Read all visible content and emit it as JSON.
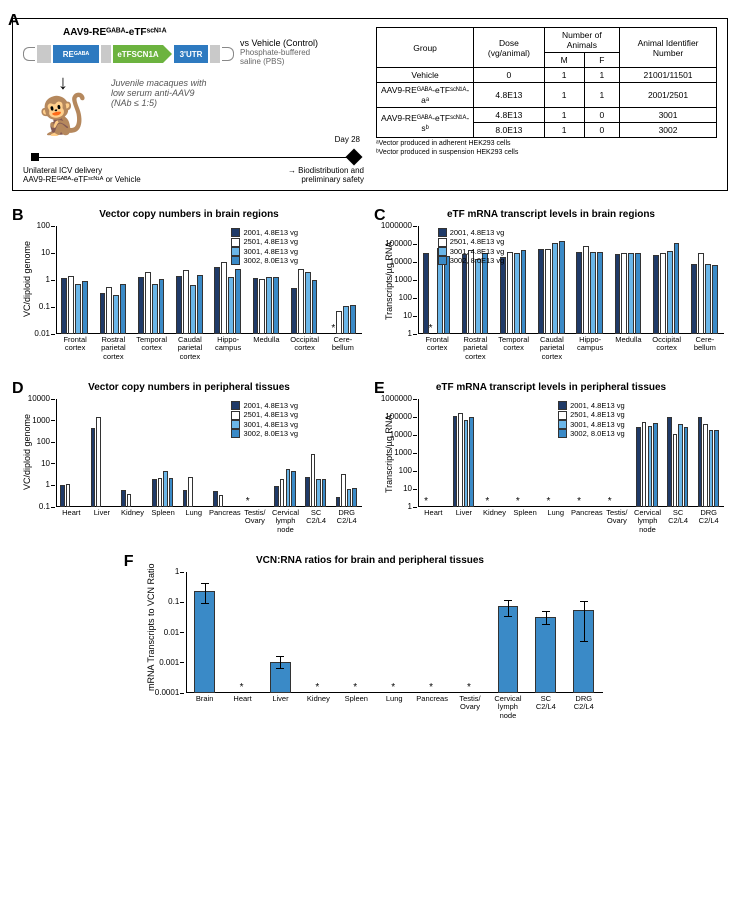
{
  "panelLabels": {
    "A": "A",
    "B": "B",
    "C": "C",
    "D": "D",
    "E": "E",
    "F": "F"
  },
  "colors": {
    "axis": "#000000",
    "bars": [
      "#1f3a68",
      "#ffffff",
      "#6bb6e8",
      "#3a8ac7"
    ],
    "barF": "#3a8ac7",
    "barFerr": "#000000"
  },
  "legend": {
    "items": [
      {
        "label": "2001, 4.8E13 vg",
        "color": "#1f3a68"
      },
      {
        "label": "2501, 4.8E13 vg",
        "color": "#ffffff"
      },
      {
        "label": "3001, 4.8E13 vg",
        "color": "#6bb6e8"
      },
      {
        "label": "3002, 8.0E13 vg",
        "color": "#3a8ac7"
      }
    ]
  },
  "A": {
    "constructTitle": "AAV9-REᴳᴬᴮᴬ-eTFˢᶜᴺ¹ᴬ",
    "segs": {
      "re": "REᴳᴬᴮᴬ",
      "etf": "eTFSCN1A",
      "utr": "3'UTR"
    },
    "vs": {
      "line1": "vs Vehicle (Control)",
      "line2": "Phosphate-buffered",
      "line3": "saline (PBS)"
    },
    "juv": {
      "l1": "Juvenile macaques with",
      "l2": "low serum anti-AAV9",
      "l3": "(NAb ≤ 1:5)"
    },
    "day28": "Day 28",
    "tl": {
      "left1": "Unilateral ICV delivery",
      "left2": "AAV9-REᴳᴬᴮᴬ-eTFˢᶜᴺ¹ᴬ or Vehicle",
      "right1": "→ Biodistribution and",
      "right2": "preliminary safety"
    },
    "table": {
      "headers": {
        "grp": "Group",
        "dose": "Dose (vg/animal)",
        "num": "Number of Animals",
        "m": "M",
        "f": "F",
        "id": "Animal Identifier Number"
      },
      "rows": [
        {
          "grp": "Vehicle",
          "dose": "0",
          "m": "1",
          "f": "1",
          "id": "21001/11501",
          "rowspan": 1
        },
        {
          "grp": "AAV9-REᴳᴬᴮᴬ-eTFˢᶜᴺ¹ᴬ-aᵃ",
          "dose": "4.8E13",
          "m": "1",
          "f": "1",
          "id": "2001/2501"
        },
        {
          "grp": "AAV9-REᴳᴬᴮᴬ-eTFˢᶜᴺ¹ᴬ-sᵇ",
          "dose": "4.8E13",
          "m": "1",
          "f": "0",
          "id": "3001",
          "extra": {
            "dose": "8.0E13",
            "m": "1",
            "f": "0",
            "id": "3002"
          }
        }
      ],
      "footnotes": [
        "ᵃVector produced in adherent HEK293 cells",
        "ᵇVector produced in suspension HEK293 cells"
      ]
    }
  },
  "B": {
    "title": "Vector copy numbers in brain regions",
    "ylabel": "VC/diploid genome",
    "yscale": {
      "type": "log",
      "min": 0.01,
      "max": 100,
      "ticks": [
        0.01,
        0.1,
        1,
        10,
        100
      ],
      "tickLabels": [
        "0.01",
        "0.1",
        "1",
        "10",
        "100"
      ]
    },
    "cats": [
      "Frontal cortex",
      "Rostral parietal cortex",
      "Temporal cortex",
      "Caudal parietal cortex",
      "Hippo-campus",
      "Medulla",
      "Occipital cortex",
      "Cere-bellum"
    ],
    "data": [
      [
        1.2,
        1.4,
        0.7,
        0.9
      ],
      [
        0.32,
        0.55,
        0.28,
        0.7
      ],
      [
        1.3,
        1.9,
        0.7,
        1.1
      ],
      [
        1.4,
        2.3,
        0.65,
        1.6
      ],
      [
        3.0,
        4.8,
        1.3,
        2.6
      ],
      [
        1.2,
        1.1,
        1.3,
        1.3
      ],
      [
        0.5,
        2.6,
        2.0,
        1.0
      ],
      [
        null,
        0.07,
        0.11,
        0.12
      ]
    ],
    "asterisks": [
      {
        "cat": 7,
        "series": 0
      }
    ]
  },
  "C": {
    "title": "eTF mRNA transcript levels in brain regions",
    "ylabel": "Transcripts/µg RNA",
    "yscale": {
      "type": "log",
      "min": 1,
      "max": 1000000,
      "ticks": [
        1,
        10,
        100,
        1000,
        10000,
        100000,
        1000000
      ],
      "tickLabels": [
        "1",
        "10",
        "100",
        "1000",
        "10000",
        "100000",
        "1000000"
      ]
    },
    "cats": [
      "Frontal cortex",
      "Rostral parietal cortex",
      "Temporal cortex",
      "Caudal parietal cortex",
      "Hippo-campus",
      "Medulla",
      "Occipital cortex",
      "Cere-bellum"
    ],
    "data": [
      [
        30000,
        null,
        60000,
        22000
      ],
      [
        28000,
        45000,
        15000,
        30000
      ],
      [
        18000,
        37000,
        33000,
        46000
      ],
      [
        55000,
        55000,
        120000,
        140000
      ],
      [
        38000,
        80000,
        35000,
        38000
      ],
      [
        28000,
        30000,
        30000,
        32000
      ],
      [
        26000,
        33000,
        43000,
        120000
      ],
      [
        8200,
        32000,
        8000,
        7000
      ]
    ],
    "asterisks": [
      {
        "cat": 0,
        "series": 1
      }
    ]
  },
  "D": {
    "title": "Vector copy numbers in peripheral tissues",
    "ylabel": "VC/diploid genome",
    "yscale": {
      "type": "log",
      "min": 0.1,
      "max": 10000,
      "ticks": [
        0.1,
        1,
        10,
        100,
        1000,
        10000
      ],
      "tickLabels": [
        "0.1",
        "1",
        "10",
        "100",
        "1000",
        "10000"
      ]
    },
    "cats": [
      "Heart",
      "Liver",
      "Kidney",
      "Spleen",
      "Lung",
      "Pancreas",
      "Testis/ Ovary",
      "Cervical lymph node",
      "SC C2/L4",
      "DRG C2/L4"
    ],
    "data": [
      [
        1.0,
        1.2,
        null,
        null
      ],
      [
        470,
        1500,
        null,
        null
      ],
      [
        0.6,
        0.4,
        null,
        null
      ],
      [
        1.9,
        2.3,
        4.7,
        2.3
      ],
      [
        0.6,
        2.4,
        null,
        null
      ],
      [
        0.55,
        0.35,
        null,
        null
      ],
      [
        null,
        null,
        null,
        null
      ],
      [
        0.95,
        2.0,
        6.0,
        4.8
      ],
      [
        2.4,
        28,
        2.0,
        2.0
      ],
      [
        0.3,
        3.3,
        0.7,
        0.8
      ]
    ],
    "asterisks": [
      {
        "cat": 6,
        "series": 0
      }
    ]
  },
  "E": {
    "title": "eTF mRNA transcript levels in peripheral tissues",
    "ylabel": "Transcripts/µg RNA",
    "yscale": {
      "type": "log",
      "min": 1,
      "max": 1000000,
      "ticks": [
        1,
        10,
        100,
        1000,
        10000,
        100000,
        1000000
      ],
      "tickLabels": [
        "1",
        "10",
        "100",
        "1000",
        "10000",
        "100000",
        "1000000"
      ]
    },
    "cats": [
      "Heart",
      "Liver",
      "Kidney",
      "Spleen",
      "Lung",
      "Pancreas",
      "Testis/ Ovary",
      "Cervical lymph node",
      "SC C2/L4",
      "DRG C2/L4"
    ],
    "data": [
      [
        null,
        null,
        null,
        null
      ],
      [
        120000,
        160000,
        70000,
        100000
      ],
      [
        null,
        null,
        null,
        null
      ],
      [
        null,
        null,
        null,
        null
      ],
      [
        null,
        null,
        null,
        null
      ],
      [
        null,
        null,
        null,
        null
      ],
      [
        null,
        null,
        null,
        null
      ],
      [
        27000,
        55000,
        30000,
        48000
      ],
      [
        100000,
        11000,
        39000,
        29000
      ],
      [
        100000,
        42000,
        18000,
        20000
      ]
    ],
    "asterisks": [
      {
        "cat": 0
      },
      {
        "cat": 2
      },
      {
        "cat": 3
      },
      {
        "cat": 4
      },
      {
        "cat": 5
      },
      {
        "cat": 6
      }
    ]
  },
  "F": {
    "title": "VCN:RNA ratios for brain and peripheral tissues",
    "ylabel": "mRNA Transcripts to VCN Ratio",
    "yscale": {
      "type": "log",
      "min": 0.0001,
      "max": 1,
      "ticks": [
        0.0001,
        0.001,
        0.01,
        0.1,
        1
      ],
      "tickLabels": [
        "0.0001",
        "0.001",
        "0.01",
        "0.1",
        "1"
      ]
    },
    "cats": [
      "Brain",
      "Heart",
      "Liver",
      "Kidney",
      "Spleen",
      "Lung",
      "Pancreas",
      "Testis/ Ovary",
      "Cervical lymph node",
      "SC C2/L4",
      "DRG C2/L4"
    ],
    "values": [
      0.24,
      null,
      0.0011,
      null,
      null,
      null,
      null,
      null,
      0.073,
      0.033,
      0.055
    ],
    "err": [
      0.15,
      null,
      0.0005,
      null,
      null,
      null,
      null,
      null,
      0.04,
      0.015,
      0.05
    ],
    "asterisks": [
      1,
      3,
      4,
      5,
      6,
      7
    ]
  }
}
